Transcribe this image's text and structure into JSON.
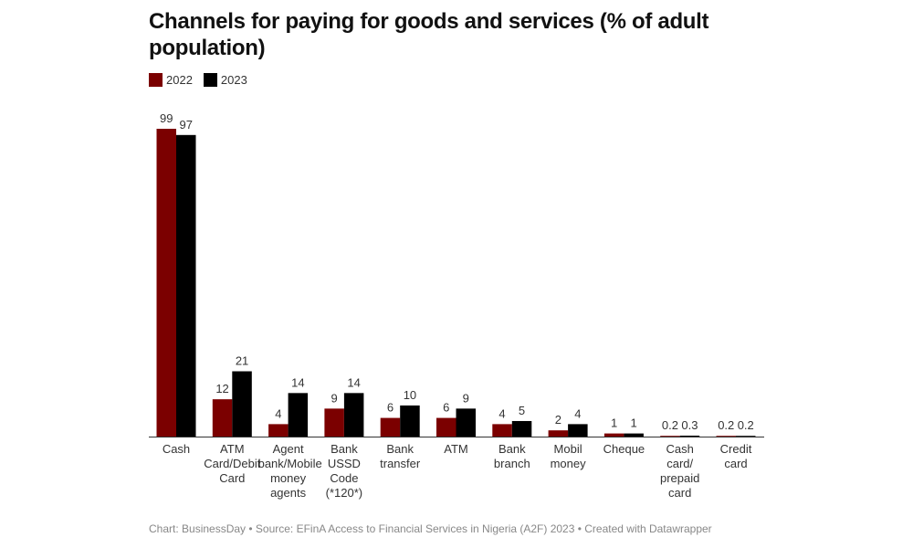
{
  "chart_data": {
    "type": "bar",
    "title": "Channels for paying for goods and services (% of adult population)",
    "categories": [
      "Cash",
      "ATM\nCard/Debit\nCard",
      "Agent\nbank/Mobile\nmoney\nagents",
      "Bank\nUSSD\nCode\n(*120*)",
      "Bank\ntransfer",
      "ATM",
      "Bank\nbranch",
      "Mobil\nmoney",
      "Cheque",
      "Cash\ncard/\nprepaid\ncard",
      "Credit\ncard"
    ],
    "series": [
      {
        "name": "2022",
        "color": "#7b0000",
        "values": [
          99,
          12,
          4,
          9,
          6,
          6,
          4,
          2,
          1,
          0.2,
          0.2
        ]
      },
      {
        "name": "2023",
        "color": "#000000",
        "values": [
          97,
          21,
          14,
          14,
          10,
          9,
          5,
          4,
          1,
          0.3,
          0.2
        ]
      }
    ],
    "ylim": [
      0,
      99
    ],
    "grid": false,
    "legend": "top-left",
    "xlabel": "",
    "ylabel": ""
  },
  "footer": "Chart: BusinessDay • Source: EFinA Access to Financial Services in Nigeria (A2F) 2023 • Created with Datawrapper"
}
